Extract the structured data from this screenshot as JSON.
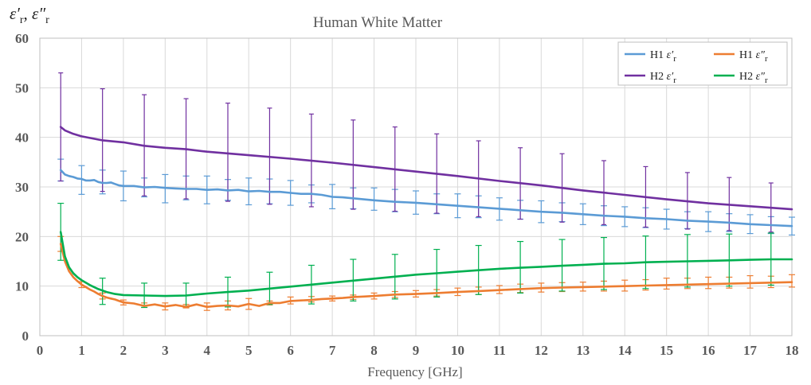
{
  "chart_data": {
    "type": "line",
    "title": "Human White Matter",
    "xlabel": "Frequency [GHz]",
    "ylabel_parts": {
      "eps1": "ε′",
      "sub1": "r",
      "sep": ", ",
      "eps2": "ε″",
      "sub2": "r"
    },
    "xlim": [
      0,
      18
    ],
    "ylim": [
      0,
      60
    ],
    "x_ticks": [
      "0",
      "1",
      "2",
      "3",
      "4",
      "5",
      "6",
      "7",
      "8",
      "9",
      "10",
      "11",
      "12",
      "13",
      "14",
      "15",
      "16",
      "17",
      "18"
    ],
    "y_ticks": [
      "0",
      "10",
      "20",
      "30",
      "40",
      "50",
      "60"
    ],
    "grid": true,
    "legend_position": "top-right",
    "series": [
      {
        "name": "H1 ε′r",
        "legend_prefix": "H1",
        "legend_eps": "ε′",
        "legend_sub": "r",
        "color": "#5B9BD5",
        "error_bar_style": "capped",
        "x": [
          0.5,
          0.6,
          0.7,
          0.8,
          0.9,
          1.0,
          1.1,
          1.2,
          1.3,
          1.4,
          1.5,
          1.6,
          1.7,
          1.8,
          1.9,
          2.0,
          2.25,
          2.5,
          2.75,
          3.0,
          3.25,
          3.5,
          3.75,
          4.0,
          4.25,
          4.5,
          4.75,
          5.0,
          5.25,
          5.5,
          5.75,
          6.0,
          6.25,
          6.5,
          6.75,
          7.0,
          7.25,
          7.5,
          7.75,
          8.0,
          8.5,
          9.0,
          9.5,
          10.0,
          10.5,
          11.0,
          11.5,
          12.0,
          12.5,
          13.0,
          13.5,
          14.0,
          14.5,
          15.0,
          15.5,
          16.0,
          16.5,
          17.0,
          17.5,
          18.0
        ],
        "y": [
          33.4,
          32.5,
          32.2,
          32.0,
          31.7,
          31.6,
          31.3,
          31.3,
          31.4,
          31.0,
          30.8,
          30.8,
          30.9,
          30.6,
          30.3,
          30.2,
          30.2,
          29.9,
          30.0,
          29.8,
          29.7,
          29.6,
          29.6,
          29.4,
          29.5,
          29.3,
          29.4,
          29.1,
          29.2,
          29.0,
          29.0,
          28.8,
          28.6,
          28.6,
          28.4,
          28.0,
          27.9,
          27.7,
          27.5,
          27.3,
          27.0,
          26.8,
          26.5,
          26.2,
          25.9,
          25.6,
          25.3,
          25.0,
          24.8,
          24.5,
          24.2,
          24.0,
          23.7,
          23.5,
          23.2,
          23.0,
          22.8,
          22.5,
          22.3,
          22.1
        ],
        "error_x": [
          0.5,
          1.0,
          1.5,
          2.0,
          2.5,
          3.0,
          3.5,
          4.0,
          4.5,
          5.0,
          5.5,
          6.0,
          6.5,
          7.0,
          7.5,
          8.0,
          8.5,
          9.0,
          9.5,
          10.0,
          10.5,
          11.0,
          11.5,
          12.0,
          12.5,
          13.0,
          13.5,
          14.0,
          14.5,
          15.0,
          15.5,
          16.0,
          16.5,
          17.0,
          17.5,
          18.0
        ],
        "error_low": [
          31.2,
          28.5,
          28.6,
          27.2,
          28.0,
          26.8,
          27.4,
          26.6,
          27.3,
          26.4,
          26.6,
          26.3,
          26.8,
          25.6,
          25.6,
          25.3,
          25.0,
          24.5,
          24.6,
          23.8,
          23.8,
          23.3,
          23.5,
          22.8,
          23.0,
          22.4,
          22.2,
          22.0,
          21.8,
          21.5,
          21.6,
          21.0,
          21.0,
          20.6,
          20.6,
          20.3
        ],
        "error_high": [
          35.6,
          34.3,
          33.4,
          33.2,
          31.8,
          32.5,
          32.2,
          32.2,
          31.5,
          31.8,
          31.6,
          31.3,
          30.4,
          30.5,
          29.8,
          29.8,
          29.5,
          29.2,
          28.6,
          28.6,
          28.2,
          27.8,
          27.3,
          27.2,
          26.8,
          26.6,
          26.2,
          26.0,
          25.8,
          25.5,
          25.0,
          25.0,
          24.6,
          24.4,
          24.0,
          23.9
        ]
      },
      {
        "name": "H1 ε″r",
        "legend_prefix": "H1",
        "legend_eps": "ε″",
        "legend_sub": "r",
        "color": "#ED7D31",
        "error_bar_style": "capped",
        "x": [
          0.5,
          0.6,
          0.7,
          0.8,
          0.9,
          1.0,
          1.1,
          1.2,
          1.3,
          1.4,
          1.5,
          1.6,
          1.7,
          1.8,
          1.9,
          2.0,
          2.25,
          2.5,
          2.75,
          3.0,
          3.25,
          3.5,
          3.75,
          4.0,
          4.25,
          4.5,
          4.75,
          5.0,
          5.25,
          5.5,
          5.75,
          6.0,
          6.25,
          6.5,
          6.75,
          7.0,
          7.25,
          7.5,
          7.75,
          8.0,
          8.5,
          9.0,
          9.5,
          10.0,
          10.5,
          11.0,
          11.5,
          12.0,
          12.5,
          13.0,
          13.5,
          14.0,
          14.5,
          15.0,
          15.5,
          16.0,
          16.5,
          17.0,
          17.5,
          18.0
        ],
        "y": [
          18.5,
          15.0,
          13.0,
          11.8,
          11.0,
          10.3,
          9.8,
          9.3,
          8.9,
          8.4,
          8.0,
          7.7,
          7.5,
          7.3,
          7.0,
          6.7,
          6.5,
          6.0,
          6.3,
          5.9,
          6.2,
          5.8,
          6.3,
          5.8,
          6.0,
          6.1,
          5.9,
          6.4,
          6.0,
          6.6,
          6.6,
          7.0,
          7.1,
          7.2,
          7.4,
          7.5,
          7.6,
          7.8,
          7.9,
          8.0,
          8.3,
          8.4,
          8.6,
          8.8,
          9.0,
          9.2,
          9.4,
          9.6,
          9.7,
          9.8,
          9.9,
          10.0,
          10.1,
          10.2,
          10.3,
          10.4,
          10.5,
          10.6,
          10.7,
          10.8
        ],
        "error_x": [
          0.5,
          1.0,
          1.5,
          2.0,
          2.5,
          3.0,
          3.5,
          4.0,
          4.5,
          5.0,
          5.5,
          6.0,
          6.5,
          7.0,
          7.5,
          8.0,
          8.5,
          9.0,
          9.5,
          10.0,
          10.5,
          11.0,
          11.5,
          12.0,
          12.5,
          13.0,
          13.5,
          14.0,
          14.5,
          15.0,
          15.5,
          16.0,
          16.5,
          17.0,
          17.5,
          18.0
        ],
        "error_low": [
          17.0,
          9.7,
          7.4,
          6.2,
          5.7,
          5.2,
          5.6,
          5.1,
          5.2,
          5.3,
          6.2,
          6.4,
          6.8,
          7.0,
          7.3,
          7.4,
          7.7,
          7.8,
          8.0,
          8.1,
          8.3,
          8.5,
          8.7,
          8.8,
          8.9,
          9.0,
          9.0,
          9.0,
          9.2,
          9.4,
          9.5,
          9.5,
          9.6,
          9.6,
          9.7,
          9.8
        ],
        "error_high": [
          20.0,
          10.9,
          8.6,
          7.2,
          6.6,
          6.6,
          6.3,
          6.6,
          7.0,
          7.5,
          7.0,
          7.8,
          7.9,
          8.0,
          8.2,
          8.6,
          8.9,
          9.1,
          9.3,
          9.6,
          9.8,
          10.1,
          10.4,
          10.6,
          10.7,
          10.8,
          11.0,
          11.2,
          11.3,
          11.6,
          11.6,
          11.8,
          11.8,
          12.1,
          12.0,
          12.3
        ]
      },
      {
        "name": "H2 ε′r",
        "legend_prefix": "H2",
        "legend_eps": "ε′",
        "legend_sub": "r",
        "color": "#7030A0",
        "error_bar_style": "plain",
        "x": [
          0.5,
          0.6,
          0.8,
          1.0,
          1.5,
          2.0,
          2.5,
          3.0,
          3.5,
          4.0,
          5.0,
          6.0,
          7.0,
          8.0,
          9.0,
          10.0,
          11.0,
          12.0,
          13.0,
          14.0,
          15.0,
          16.0,
          17.0,
          18.0
        ],
        "y": [
          42.1,
          41.4,
          40.7,
          40.2,
          39.4,
          39.0,
          38.3,
          37.9,
          37.6,
          37.1,
          36.4,
          35.7,
          34.9,
          34.0,
          33.1,
          32.2,
          31.2,
          30.3,
          29.3,
          28.4,
          27.5,
          26.7,
          26.1,
          25.5
        ],
        "error_x": [
          0.5,
          1.5,
          2.5,
          3.5,
          4.5,
          5.5,
          6.5,
          7.5,
          8.5,
          9.5,
          10.5,
          11.5,
          12.5,
          13.5,
          14.5,
          15.5,
          16.5,
          17.5
        ],
        "error_low": [
          31.2,
          29.1,
          28.2,
          27.6,
          27.1,
          26.5,
          26.0,
          25.5,
          25.1,
          24.7,
          24.0,
          23.5,
          22.9,
          22.4,
          21.9,
          21.5,
          21.2,
          20.9
        ],
        "error_high": [
          53.0,
          49.8,
          48.6,
          47.8,
          46.9,
          45.9,
          44.7,
          43.5,
          42.1,
          40.7,
          39.3,
          37.9,
          36.7,
          35.3,
          34.1,
          32.9,
          31.9,
          30.8
        ]
      },
      {
        "name": "H2 ε″r",
        "legend_prefix": "H2",
        "legend_eps": "ε″",
        "legend_sub": "r",
        "color": "#00B050",
        "error_bar_style": "capped",
        "x": [
          0.5,
          0.6,
          0.7,
          0.8,
          0.9,
          1.0,
          1.2,
          1.4,
          1.6,
          1.8,
          2.0,
          2.5,
          3.0,
          3.5,
          4.0,
          4.5,
          5.0,
          5.5,
          6.0,
          6.5,
          7.0,
          7.5,
          8.0,
          8.5,
          9.0,
          9.5,
          10.0,
          10.5,
          11.0,
          11.5,
          12.0,
          12.5,
          13.0,
          13.5,
          14.0,
          14.5,
          15.0,
          15.5,
          16.0,
          16.5,
          17.0,
          17.5,
          18.0
        ],
        "y": [
          20.9,
          16.0,
          13.8,
          12.6,
          11.8,
          11.2,
          10.2,
          9.4,
          8.8,
          8.4,
          8.2,
          8.1,
          8.0,
          8.1,
          8.5,
          8.8,
          9.1,
          9.5,
          9.9,
          10.3,
          10.7,
          11.1,
          11.5,
          11.9,
          12.3,
          12.6,
          12.9,
          13.2,
          13.5,
          13.7,
          13.9,
          14.1,
          14.3,
          14.5,
          14.6,
          14.8,
          14.9,
          15.0,
          15.1,
          15.2,
          15.3,
          15.4,
          15.4
        ],
        "error_x": [
          0.5,
          1.5,
          2.5,
          3.5,
          4.5,
          5.5,
          6.5,
          7.5,
          8.5,
          9.5,
          10.5,
          11.5,
          12.5,
          13.5,
          14.5,
          15.5,
          16.5,
          17.5
        ],
        "error_low": [
          15.2,
          6.3,
          5.7,
          5.8,
          5.8,
          6.3,
          6.4,
          7.0,
          7.4,
          7.8,
          8.3,
          8.6,
          9.0,
          9.3,
          9.5,
          9.8,
          10.0,
          10.2
        ],
        "error_high": [
          26.7,
          11.6,
          10.6,
          10.6,
          11.8,
          12.8,
          14.2,
          15.4,
          16.4,
          17.4,
          18.2,
          19.0,
          19.4,
          19.8,
          20.1,
          20.4,
          20.5,
          20.7
        ]
      }
    ]
  }
}
